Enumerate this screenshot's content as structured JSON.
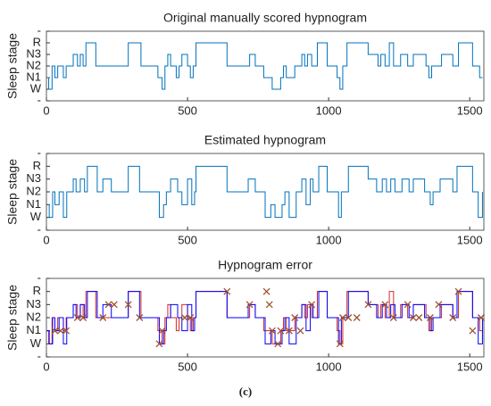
{
  "chart_data": [
    {
      "type": "line",
      "title": "Original manually scored hypnogram",
      "ylabel": "Sleep stage",
      "xlim": [
        0,
        1550
      ],
      "xticks": [
        0,
        500,
        1000,
        1500
      ],
      "ylim": [
        -1,
        5
      ],
      "yticks": [
        {
          "value": -1,
          "label": "-"
        },
        {
          "value": 0,
          "label": "W"
        },
        {
          "value": 1,
          "label": "N1"
        },
        {
          "value": 2,
          "label": "N2"
        },
        {
          "value": 3,
          "label": "N3"
        },
        {
          "value": 4,
          "label": "R"
        },
        {
          "value": 5,
          "label": "-"
        }
      ],
      "series": [
        {
          "color": "#0072bd",
          "x": [
            0,
            8,
            20,
            30,
            40,
            60,
            70,
            95,
            110,
            120,
            130,
            140,
            175,
            290,
            335,
            395,
            410,
            420,
            430,
            440,
            460,
            470,
            480,
            500,
            510,
            520,
            530,
            640,
            720,
            740,
            770,
            800,
            830,
            840,
            850,
            880,
            905,
            915,
            925,
            940,
            960,
            995,
            1030,
            1040,
            1050,
            1065,
            1140,
            1175,
            1185,
            1200,
            1215,
            1230,
            1255,
            1280,
            1300,
            1345,
            1355,
            1365,
            1400,
            1440,
            1460,
            1510,
            1535,
            1545
          ],
          "values": [
            1,
            0,
            2,
            1,
            2,
            1,
            2,
            3,
            2,
            3,
            2,
            4,
            2,
            4,
            2,
            1,
            0,
            2,
            3,
            2,
            1,
            2,
            3,
            2,
            1,
            2,
            4,
            2,
            3,
            2,
            1,
            0,
            1,
            2,
            1,
            2,
            3,
            2,
            3,
            2,
            4,
            2,
            1,
            0,
            2,
            4,
            3,
            2,
            3,
            2,
            4,
            2,
            3,
            2,
            3,
            2,
            1,
            2,
            3,
            2,
            4,
            2,
            1,
            1
          ]
        }
      ]
    },
    {
      "type": "line",
      "title": "Estimated hypnogram",
      "ylabel": "Sleep stage",
      "xlim": [
        0,
        1550
      ],
      "xticks": [
        0,
        500,
        1000,
        1500
      ],
      "ylim": [
        -1,
        5
      ],
      "yticks": [
        {
          "value": -1,
          "label": "-"
        },
        {
          "value": 0,
          "label": "W"
        },
        {
          "value": 1,
          "label": "N1"
        },
        {
          "value": 2,
          "label": "N2"
        },
        {
          "value": 3,
          "label": "N3"
        },
        {
          "value": 4,
          "label": "R"
        },
        {
          "value": 5,
          "label": "-"
        }
      ],
      "series": [
        {
          "color": "#0072bd",
          "x": [
            0,
            10,
            22,
            30,
            45,
            60,
            72,
            95,
            105,
            120,
            135,
            145,
            180,
            200,
            230,
            290,
            330,
            400,
            415,
            425,
            440,
            465,
            480,
            500,
            515,
            525,
            530,
            640,
            715,
            740,
            775,
            795,
            810,
            835,
            845,
            860,
            885,
            905,
            920,
            935,
            945,
            965,
            995,
            1035,
            1045,
            1055,
            1070,
            1140,
            1170,
            1190,
            1205,
            1220,
            1235,
            1260,
            1285,
            1300,
            1340,
            1360,
            1370,
            1395,
            1440,
            1455,
            1510,
            1530,
            1545
          ],
          "values": [
            1,
            0,
            2,
            1,
            2,
            0,
            2,
            3,
            2,
            3,
            2,
            4,
            2,
            3,
            2,
            4,
            2,
            0,
            1,
            2,
            3,
            2,
            1,
            3,
            1,
            2,
            4,
            2,
            3,
            2,
            0,
            1,
            0,
            1,
            2,
            0,
            2,
            3,
            1,
            3,
            2,
            4,
            2,
            0,
            2,
            2,
            4,
            3,
            2,
            3,
            2,
            3,
            2,
            3,
            2,
            3,
            2,
            1,
            2,
            3,
            2,
            4,
            2,
            0,
            2
          ]
        }
      ]
    },
    {
      "type": "line",
      "title": "Hypnogram error",
      "ylabel": "Sleep stage",
      "xlim": [
        0,
        1550
      ],
      "xticks": [
        0,
        500,
        1000,
        1500
      ],
      "ylim": [
        -1,
        5
      ],
      "yticks": [
        {
          "value": -1,
          "label": "-"
        },
        {
          "value": 0,
          "label": "W"
        },
        {
          "value": 1,
          "label": "N1"
        },
        {
          "value": 2,
          "label": "N2"
        },
        {
          "value": 3,
          "label": "N3"
        },
        {
          "value": 4,
          "label": "R"
        },
        {
          "value": 5,
          "label": "-"
        }
      ],
      "series": [
        {
          "color": "#d62728",
          "x": [
            0,
            8,
            20,
            30,
            40,
            60,
            70,
            95,
            110,
            120,
            130,
            140,
            175,
            290,
            335,
            395,
            410,
            420,
            430,
            440,
            460,
            470,
            480,
            500,
            510,
            520,
            530,
            640,
            720,
            740,
            770,
            800,
            830,
            840,
            850,
            880,
            905,
            915,
            925,
            940,
            960,
            995,
            1030,
            1040,
            1050,
            1065,
            1140,
            1175,
            1185,
            1200,
            1215,
            1230,
            1255,
            1280,
            1300,
            1345,
            1355,
            1365,
            1400,
            1440,
            1460,
            1510,
            1535,
            1545
          ],
          "values": [
            1,
            0,
            2,
            1,
            2,
            1,
            2,
            3,
            2,
            3,
            2,
            4,
            2,
            4,
            2,
            1,
            0,
            2,
            3,
            2,
            1,
            2,
            3,
            2,
            1,
            2,
            4,
            2,
            3,
            2,
            1,
            0,
            1,
            2,
            1,
            2,
            3,
            2,
            3,
            2,
            4,
            2,
            1,
            0,
            2,
            4,
            3,
            2,
            3,
            2,
            4,
            2,
            3,
            2,
            3,
            2,
            1,
            2,
            3,
            2,
            4,
            2,
            1,
            1
          ]
        },
        {
          "color": "#0000ff",
          "x": [
            0,
            10,
            22,
            30,
            45,
            60,
            72,
            95,
            105,
            120,
            135,
            145,
            180,
            200,
            230,
            290,
            330,
            400,
            415,
            425,
            440,
            465,
            480,
            500,
            515,
            525,
            530,
            640,
            715,
            740,
            775,
            795,
            810,
            835,
            845,
            860,
            885,
            905,
            920,
            935,
            945,
            965,
            995,
            1035,
            1045,
            1055,
            1070,
            1140,
            1170,
            1190,
            1205,
            1220,
            1235,
            1260,
            1285,
            1300,
            1340,
            1360,
            1370,
            1395,
            1440,
            1455,
            1510,
            1530,
            1545
          ],
          "values": [
            1,
            0,
            2,
            1,
            2,
            0,
            2,
            3,
            2,
            3,
            2,
            4,
            2,
            3,
            2,
            4,
            2,
            0,
            1,
            2,
            3,
            2,
            1,
            3,
            1,
            2,
            4,
            2,
            3,
            2,
            0,
            1,
            0,
            1,
            2,
            0,
            2,
            3,
            1,
            3,
            2,
            4,
            2,
            0,
            2,
            2,
            4,
            3,
            2,
            3,
            2,
            3,
            2,
            3,
            2,
            3,
            2,
            1,
            2,
            3,
            2,
            4,
            2,
            0,
            2
          ]
        },
        {
          "type": "scatter",
          "marker": "x",
          "color": "#a0522d",
          "x": [
            30,
            50,
            70,
            110,
            130,
            200,
            220,
            240,
            290,
            330,
            400,
            410,
            490,
            510,
            640,
            720,
            780,
            790,
            800,
            820,
            830,
            860,
            880,
            900,
            940,
            1040,
            1050,
            1070,
            1100,
            1140,
            1200,
            1230,
            1280,
            1300,
            1320,
            1360,
            1390,
            1440,
            1460,
            1510,
            1540
          ],
          "values": [
            1,
            1,
            1,
            2,
            2,
            2,
            3,
            3,
            3,
            2,
            0,
            1,
            2,
            2,
            4,
            3,
            4,
            3,
            1,
            0,
            1,
            1,
            2,
            1,
            3,
            0,
            2,
            2,
            2,
            3,
            3,
            2,
            3,
            2,
            2,
            2,
            3,
            2,
            4,
            1,
            2
          ]
        }
      ]
    }
  ],
  "caption": "(c)"
}
